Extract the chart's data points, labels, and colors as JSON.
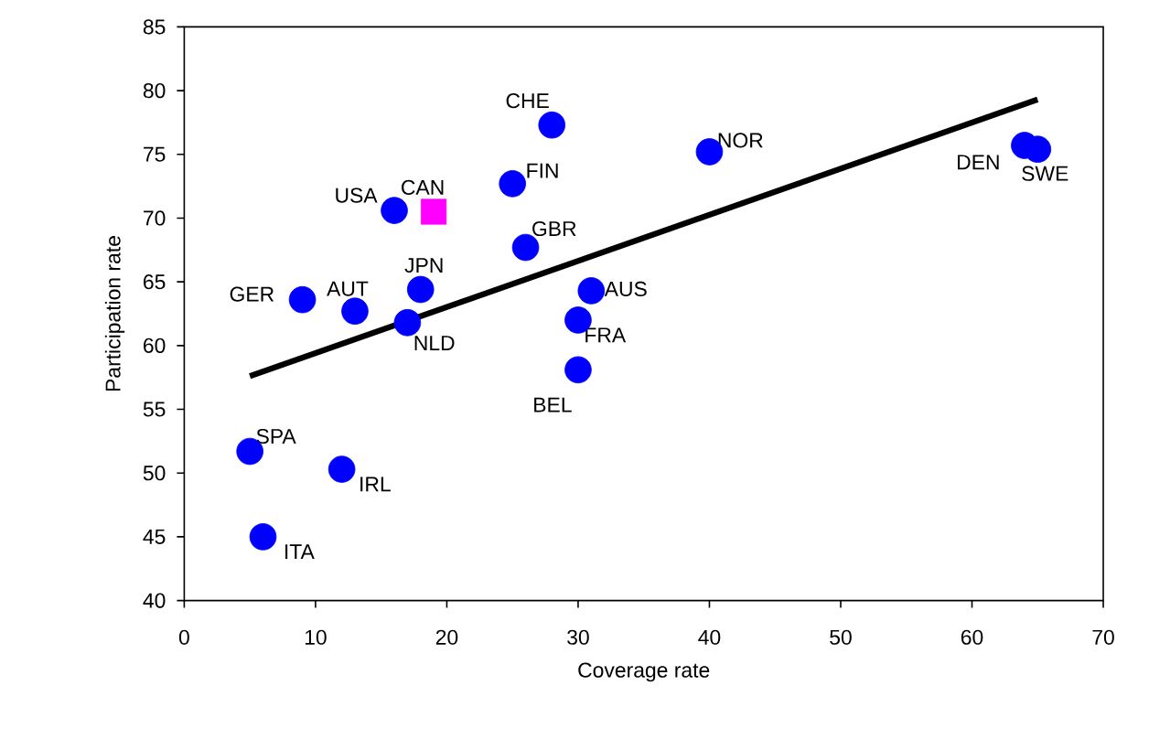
{
  "chart_data": {
    "type": "scatter",
    "xlabel": "Coverage rate",
    "ylabel": "Participation rate",
    "xlim": [
      0,
      70
    ],
    "xticks": [
      0,
      10,
      20,
      30,
      40,
      50,
      60,
      70
    ],
    "ylim": [
      40,
      85
    ],
    "yticks": [
      40,
      45,
      50,
      55,
      60,
      65,
      70,
      75,
      80,
      85
    ],
    "marker": "circle",
    "grid": false,
    "series": [
      {
        "color": "#0000ff",
        "x": [
          5,
          6,
          12,
          9,
          13,
          18,
          17,
          16,
          25,
          28,
          26,
          31,
          30,
          30,
          40,
          64,
          65
        ],
        "values": [
          51.7,
          45,
          50.3,
          63.6,
          62.7,
          64.4,
          61.8,
          70.6,
          72.7,
          77.3,
          67.7,
          64.3,
          62.0,
          58.1,
          75.2,
          75.7,
          75.4
        ],
        "value_labels": [
          "SPA",
          "ITA",
          "IRL",
          "GER",
          "AUT",
          "JPN",
          "NLD",
          "USA",
          "FIN",
          "CHE",
          "GBR",
          "AUS",
          "FRA",
          "BEL",
          "NOR",
          "DEN",
          "SWE"
        ]
      },
      {
        "color": "#ff00ff",
        "marker": "square",
        "x": [
          19
        ],
        "values": [
          70.5
        ],
        "value_labels": [
          "CAN"
        ]
      },
      {
        "type": "line",
        "color": "#000000",
        "marker": "none",
        "line_style": "solid",
        "x": [
          5,
          65
        ],
        "values": [
          57.6,
          79.3
        ]
      }
    ]
  }
}
